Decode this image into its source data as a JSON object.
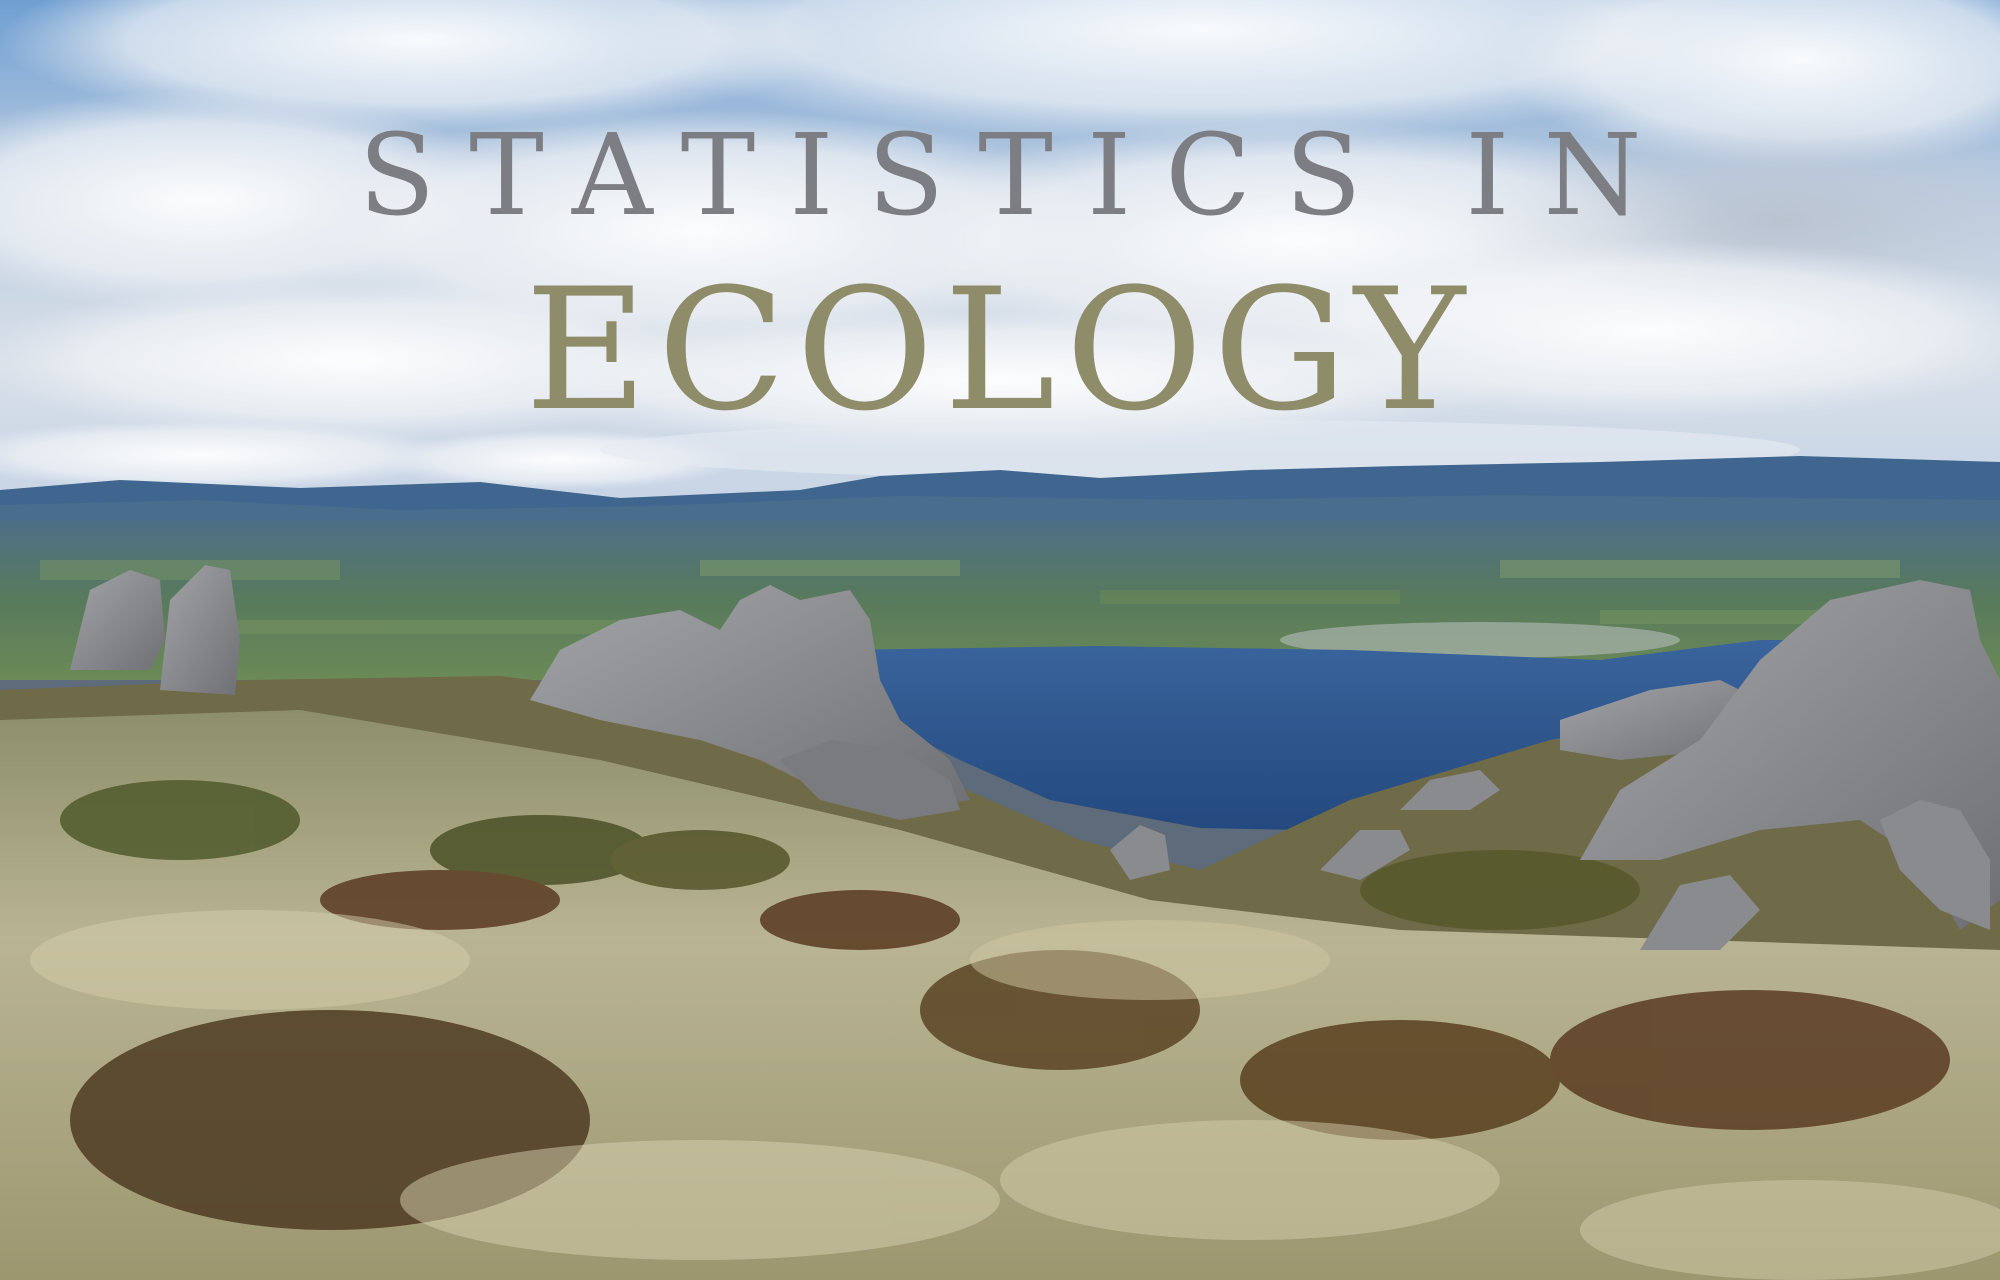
{
  "title": {
    "line1": "STATISTICS IN",
    "line2": "ECOLOGY"
  },
  "colors": {
    "line1": "#7d7e83",
    "line2": "#8f8c6a",
    "sky": "#7fa7d6",
    "lake": "#2f5a98",
    "tussock": "#b8b08a"
  },
  "scene": {
    "description_icons": [
      "cloud-sky",
      "mountain-range",
      "lake",
      "granite-tors",
      "tussock-grassland"
    ]
  }
}
